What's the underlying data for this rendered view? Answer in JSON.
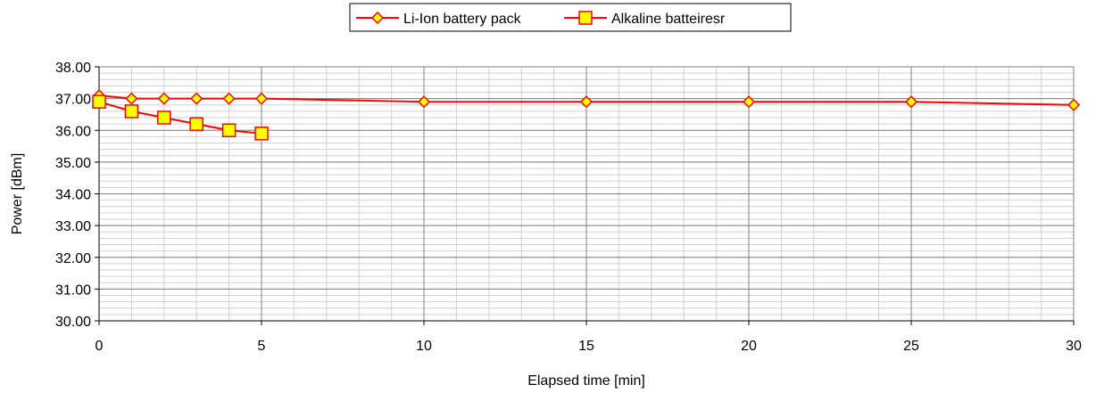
{
  "chart_data": {
    "type": "line",
    "title": "",
    "xlabel": "Elapsed time [min]",
    "ylabel": "Power [dBm]",
    "xlim": [
      0,
      30
    ],
    "ylim": [
      30,
      38
    ],
    "x_ticks": [
      0,
      5,
      10,
      15,
      20,
      25,
      30
    ],
    "y_ticks": [
      "30.00",
      "31.00",
      "32.00",
      "33.00",
      "34.00",
      "35.00",
      "36.00",
      "37.00",
      "38.00"
    ],
    "grid": true,
    "minor_grid": true,
    "legend_position": "top-center",
    "series": [
      {
        "name": "Li-Ion battery pack",
        "marker": "diamond",
        "line_color": "#ff0000",
        "marker_fill": "#ffff00",
        "marker_edge": "#ff0000",
        "x": [
          0,
          1,
          2,
          3,
          4,
          5,
          10,
          15,
          20,
          25,
          30
        ],
        "y": [
          37.1,
          37.0,
          37.0,
          37.0,
          37.0,
          37.0,
          36.9,
          36.9,
          36.9,
          36.9,
          36.8
        ]
      },
      {
        "name": "Alkaline batteiresr",
        "marker": "square",
        "line_color": "#ff0000",
        "marker_fill": "#ffff00",
        "marker_edge": "#ff0000",
        "x": [
          0,
          1,
          2,
          3,
          4,
          5
        ],
        "y": [
          36.9,
          36.6,
          36.4,
          36.2,
          36.0,
          35.9
        ]
      }
    ]
  }
}
